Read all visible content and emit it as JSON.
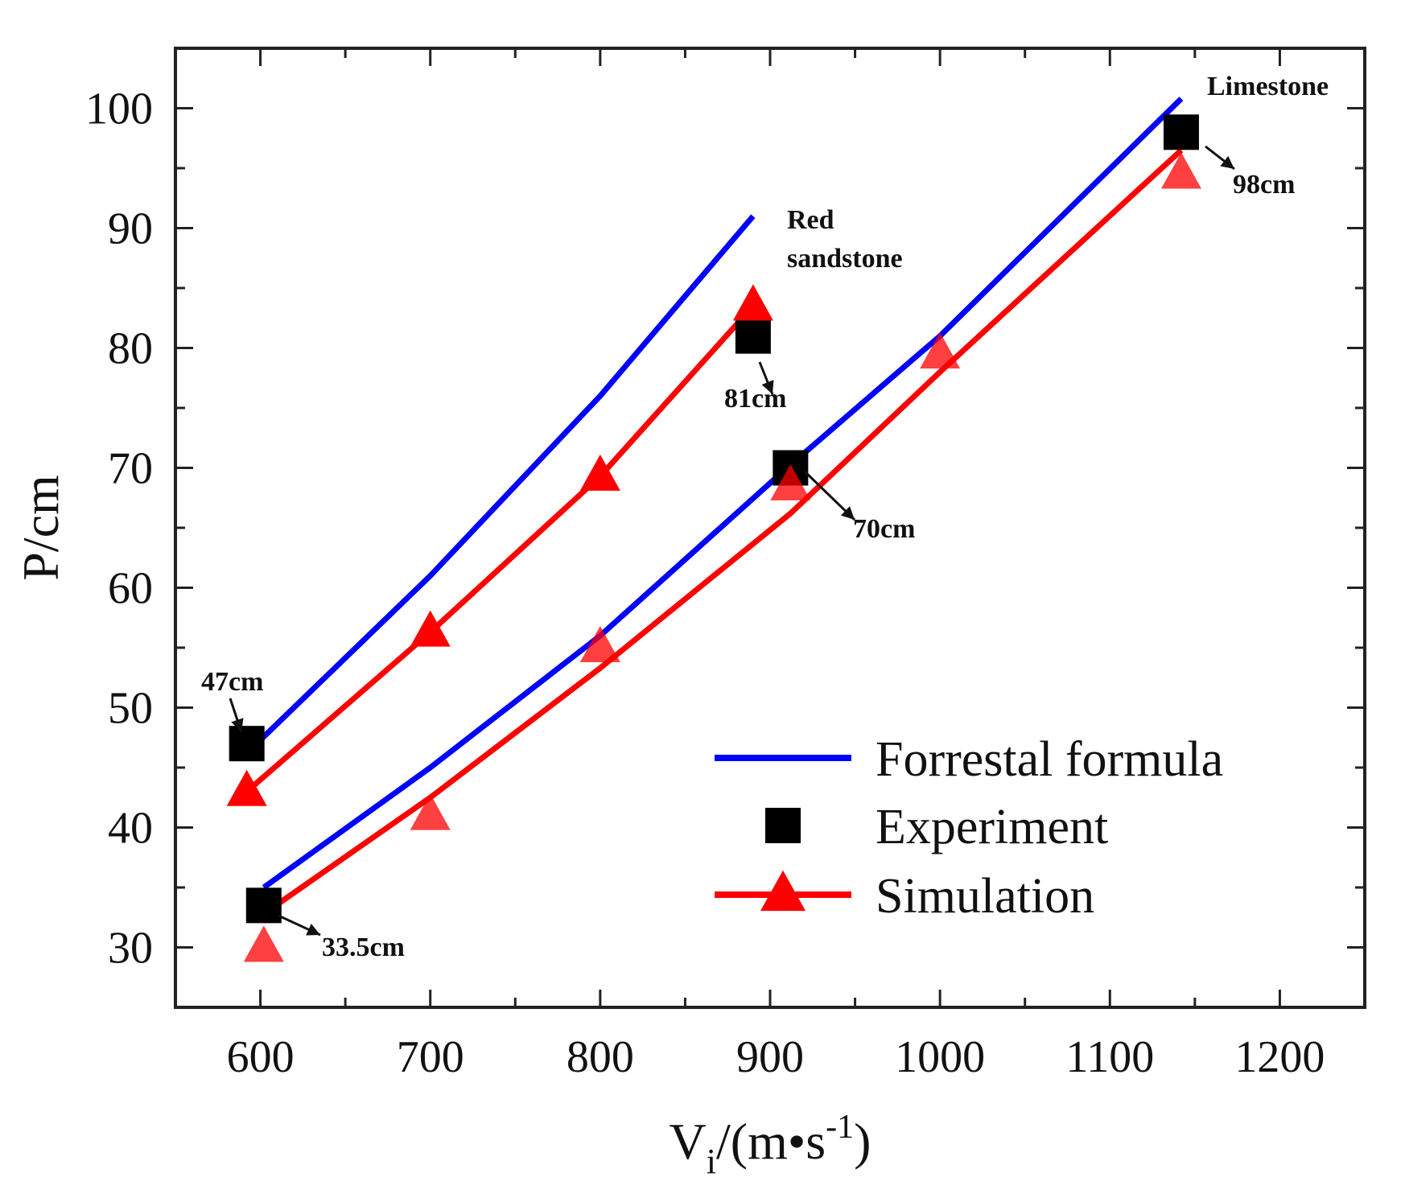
{
  "chart_data": {
    "type": "line",
    "xlabel": "V",
    "xlabel_sub": "i",
    "xlabel_rest": "/(m•s",
    "xlabel_sup": "-1",
    "xlabel_end": ")",
    "ylabel": "P/cm",
    "xlim": [
      550,
      1250
    ],
    "ylim": [
      25,
      105
    ],
    "xticks": [
      "600",
      "700",
      "800",
      "900",
      "1000",
      "1100",
      "1200"
    ],
    "yticks": [
      "30",
      "40",
      "50",
      "60",
      "70",
      "80",
      "90",
      "100"
    ],
    "grid": false,
    "legend_position": "bottom-right",
    "colors": {
      "forrestal": "#0000ff",
      "experiment": "#000000",
      "simulation": "#ff0000"
    },
    "legend": [
      {
        "name": "Forrestal  formula"
      },
      {
        "name": "Experiment"
      },
      {
        "name": "Simulation"
      }
    ],
    "groups": [
      {
        "label_lines": [
          "Red",
          "sandstone"
        ],
        "forrestal": {
          "x": [
            592,
            700,
            800,
            890
          ],
          "y": [
            46.2,
            61,
            76,
            91
          ]
        },
        "experiment": {
          "x": [
            592,
            890
          ],
          "y": [
            47,
            81
          ]
        },
        "simulation": {
          "x": [
            592,
            700,
            800,
            890
          ],
          "y": [
            43,
            56.3,
            69.3,
            83.5
          ]
        }
      },
      {
        "label_lines": [
          "Limestone"
        ],
        "forrestal": {
          "x": [
            602,
            700,
            800,
            910,
            1000,
            1142
          ],
          "y": [
            35,
            45,
            56,
            70,
            81,
            100.8
          ]
        },
        "experiment": {
          "x": [
            602,
            912,
            1142
          ],
          "y": [
            33.5,
            70,
            98
          ]
        },
        "simulation": {
          "x": [
            602,
            700,
            800,
            912,
            1000,
            1142
          ],
          "y": [
            30,
            41,
            55,
            68.5,
            79.5,
            94.5
          ]
        },
        "simulation_line": {
          "x": [
            602,
            700,
            800,
            912,
            1000,
            1142
          ],
          "y": [
            32.8,
            42.5,
            53.3,
            66.2,
            78,
            96.5
          ]
        }
      }
    ],
    "annotations": [
      "47cm",
      "81cm",
      "70cm",
      "98cm",
      "33.5cm"
    ]
  }
}
